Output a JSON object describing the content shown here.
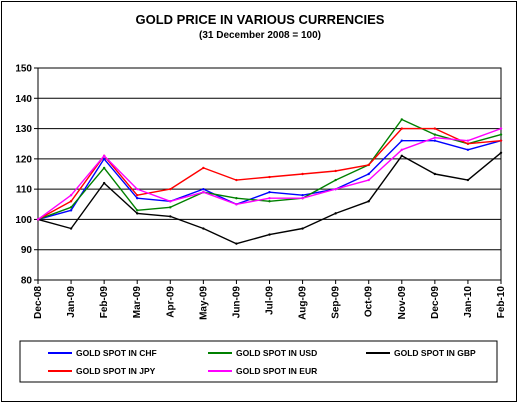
{
  "chart_data": {
    "type": "line",
    "title": "GOLD PRICE IN VARIOUS CURRENCIES",
    "subtitle": "(31 December 2008 = 100)",
    "xlabel": "",
    "ylabel": "",
    "ylim": [
      80,
      150
    ],
    "y_ticks": [
      80,
      90,
      100,
      110,
      120,
      130,
      140,
      150
    ],
    "grid": true,
    "legend_position": "bottom",
    "x": [
      "Dec-08",
      "Jan-09",
      "Feb-09",
      "Mar-09",
      "Apr-09",
      "May-09",
      "Jun-09",
      "Jul-09",
      "Aug-09",
      "Sep-09",
      "Oct-09",
      "Nov-09",
      "Dec-09",
      "Jan-10",
      "Feb-10"
    ],
    "series": [
      {
        "name": "GOLD SPOT IN CHF",
        "color": "#0000ff",
        "values": [
          100,
          103,
          120,
          107,
          106,
          110,
          105,
          109,
          108,
          110,
          115,
          126,
          126,
          123,
          126
        ]
      },
      {
        "name": "GOLD SPOT IN USD",
        "color": "#008000",
        "values": [
          100,
          104,
          117,
          103,
          104,
          109,
          107,
          106,
          107,
          113,
          118,
          133,
          128,
          125,
          128
        ]
      },
      {
        "name": "GOLD SPOT IN GBP",
        "color": "#000000",
        "values": [
          100,
          97,
          112,
          102,
          101,
          97,
          92,
          95,
          97,
          102,
          106,
          121,
          115,
          113,
          122
        ]
      },
      {
        "name": "GOLD SPOT IN JPY",
        "color": "#ff0000",
        "values": [
          100,
          106,
          121,
          108,
          110,
          117,
          113,
          114,
          115,
          116,
          118,
          130,
          130,
          125,
          126
        ]
      },
      {
        "name": "GOLD SPOT IN EUR",
        "color": "#ff00ff",
        "values": [
          100,
          108,
          121,
          110,
          106,
          109,
          105,
          107,
          107,
          110,
          113,
          123,
          127,
          126,
          130
        ]
      }
    ]
  }
}
